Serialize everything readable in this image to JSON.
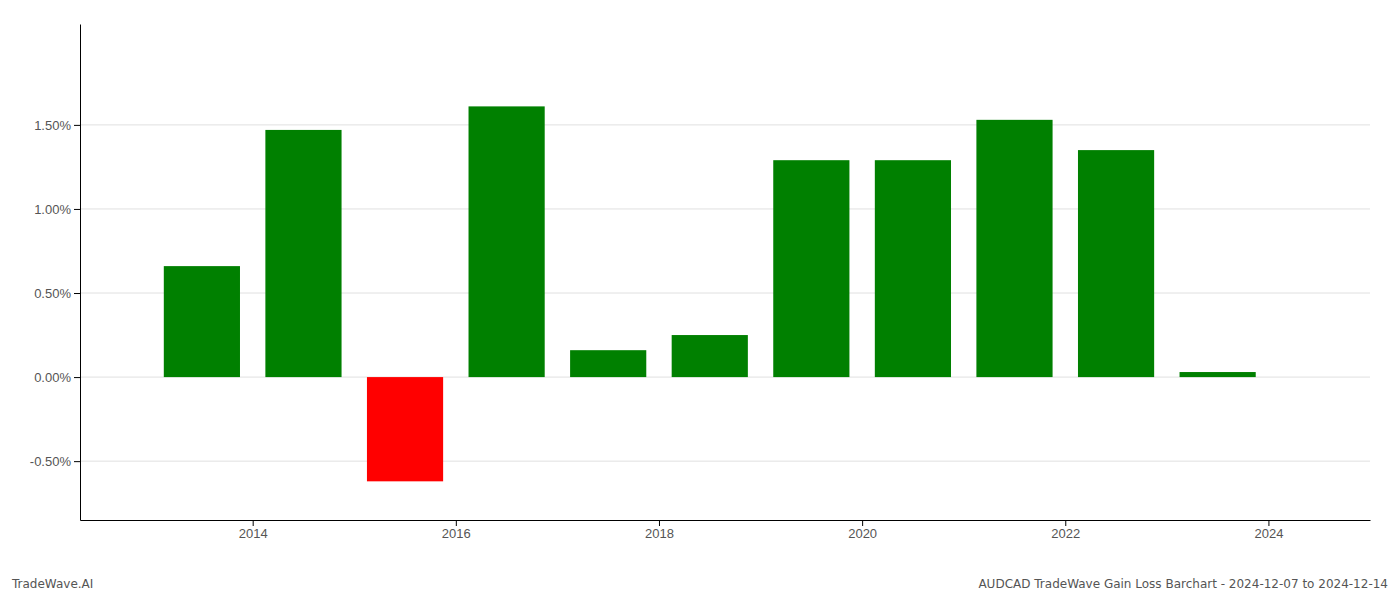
{
  "chart_data": {
    "type": "bar",
    "title": "AUDCAD TradeWave Gain Loss Barchart - 2024-12-07 to 2024-12-14",
    "annotations": [
      "TradeWave.AI"
    ],
    "x": [
      2013,
      2014,
      2015,
      2016,
      2017,
      2018,
      2019,
      2020,
      2021,
      2022,
      2023
    ],
    "values": [
      0.0066,
      0.0147,
      -0.0062,
      0.0161,
      0.0016,
      0.0025,
      0.0129,
      0.0129,
      0.0153,
      0.0135,
      0.0003
    ],
    "colors": [
      "#008000",
      "#008000",
      "#ff0000",
      "#008000",
      "#008000",
      "#008000",
      "#008000",
      "#008000",
      "#008000",
      "#008000",
      "#008000"
    ],
    "xlim": [
      2012.3,
      2025.0
    ],
    "xticks": [
      2014,
      2016,
      2018,
      2020,
      2022,
      2024
    ],
    "ylim": [
      -0.0085,
      0.021
    ],
    "yticks": [
      {
        "value": -0.005,
        "label": "-0.50%"
      },
      {
        "value": 0.0,
        "label": "0.00%"
      },
      {
        "value": 0.005,
        "label": "0.50%"
      },
      {
        "value": 0.01,
        "label": "1.00%"
      },
      {
        "value": 0.015,
        "label": "1.50%"
      }
    ],
    "grid": true
  }
}
